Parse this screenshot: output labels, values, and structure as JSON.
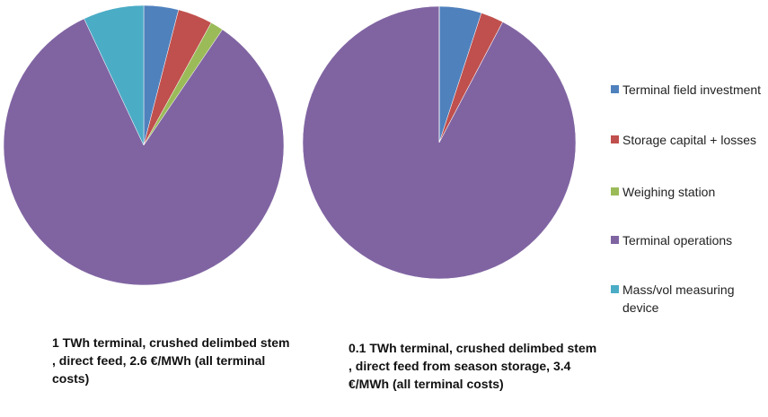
{
  "chart_data": [
    {
      "type": "pie",
      "title": "1 TWh terminal, crushed delimbed stem , direct feed, 2.6 €/MWh (all terminal costs)",
      "values": [
        4,
        4,
        1.5,
        83.5,
        7
      ]
    },
    {
      "type": "pie",
      "title": "0.1 TWh terminal, crushed delimbed stem , direct feed from season storage, 3.4 €/MWh (all terminal costs)",
      "values": [
        5,
        2.7,
        0,
        92.3,
        0
      ]
    }
  ],
  "legend": {
    "categories": [
      "Terminal field investment",
      "Storage capital + losses",
      "Weighing station",
      "Terminal operations",
      "Mass/vol measuring device"
    ],
    "colors": [
      "#4f81bd",
      "#c0504d",
      "#9bbb59",
      "#8064a2",
      "#4bacc6"
    ]
  }
}
